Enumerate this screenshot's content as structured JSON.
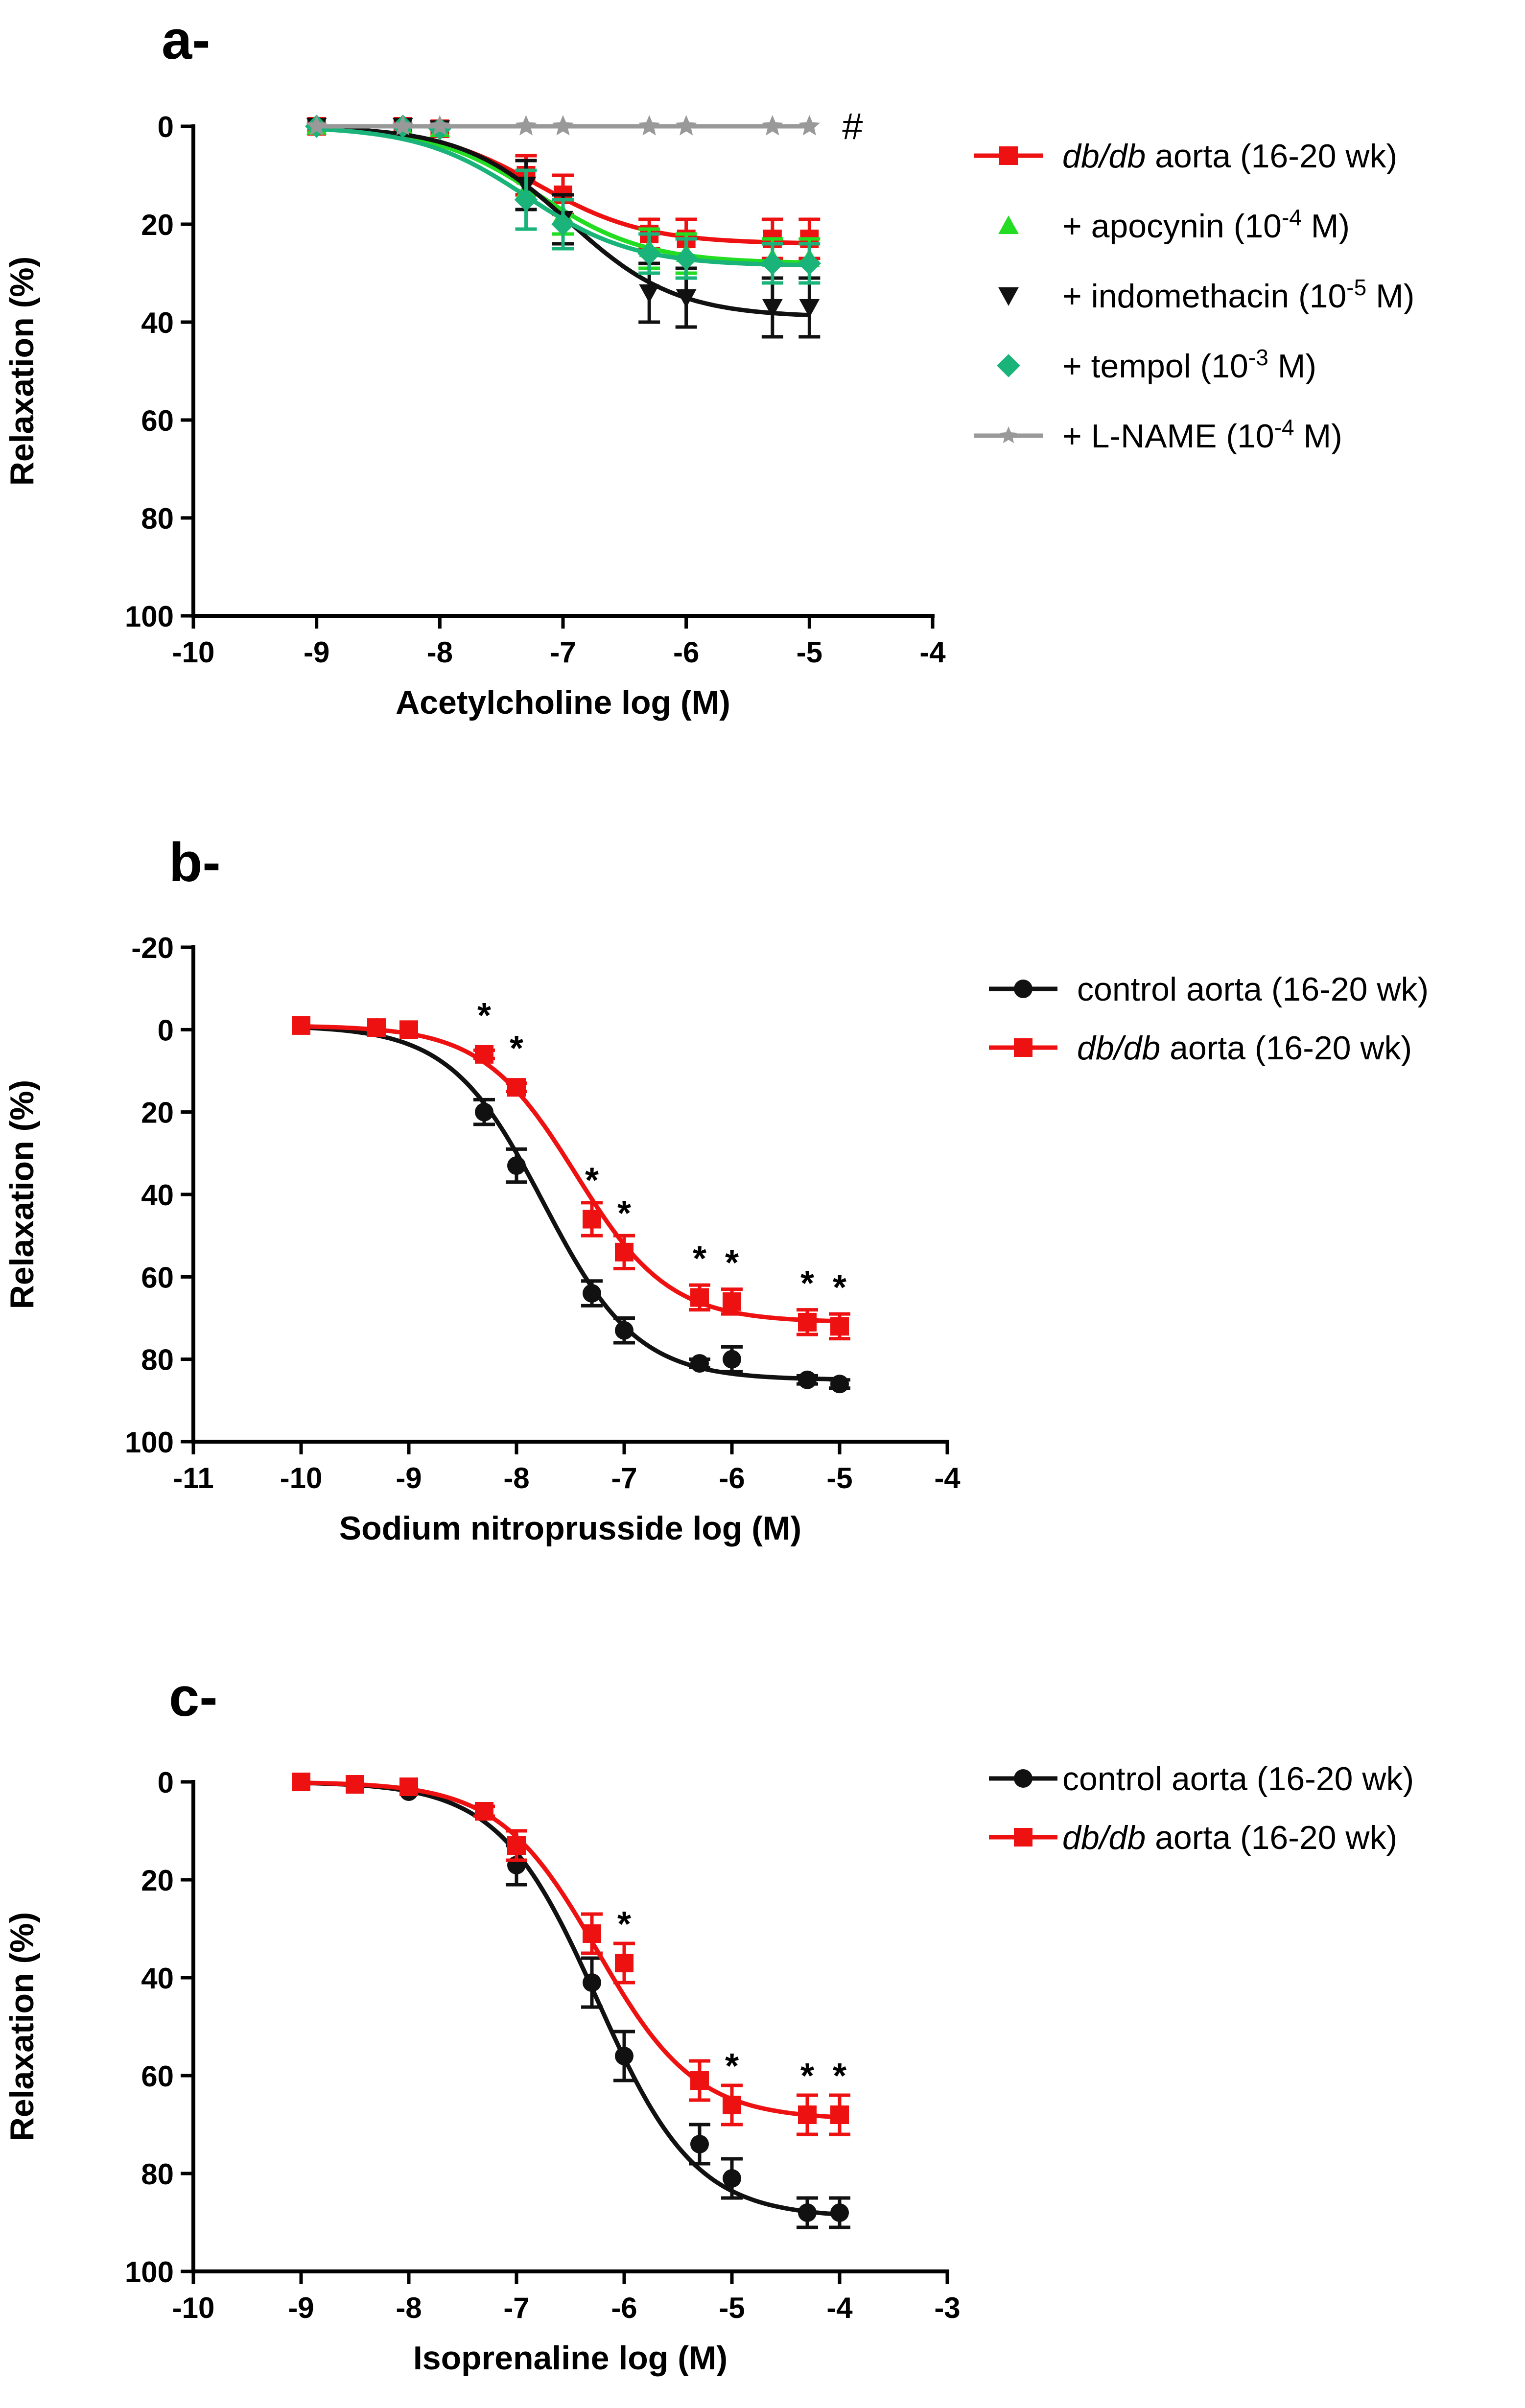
{
  "chart_data": [
    {
      "panel_label": "a-",
      "type": "line",
      "xlabel": "Acetylcholine log (M)",
      "ylabel": "Relaxation (%)",
      "xlim": [
        -10,
        -4
      ],
      "ylim": [
        0,
        100
      ],
      "y_inverted": true,
      "xticks": [
        "-10",
        "-9",
        "-8",
        "-7",
        "-6",
        "-5",
        "-4"
      ],
      "yticks": [
        "0",
        "20",
        "40",
        "60",
        "80",
        "100"
      ],
      "legend_position": "right",
      "annotations": [
        {
          "text": "#",
          "x": -4.65,
          "y": 0
        }
      ],
      "series": [
        {
          "name_prefix": "",
          "name_italic": "db/db",
          "name_rest": " aorta (16-20 wk)",
          "color": "#ee1111",
          "marker": "square",
          "x": [
            -9,
            -8.3,
            -8,
            -7.3,
            -7,
            -6.3,
            -6,
            -5.3,
            -5
          ],
          "y": [
            0,
            0,
            0.5,
            10,
            14,
            22,
            23,
            23,
            23
          ],
          "err": [
            0,
            0,
            0,
            4,
            4,
            3,
            4,
            4,
            4
          ],
          "fit": {
            "bottom": 0,
            "top": 24,
            "logec50": -7.2,
            "hill": 1.0
          }
        },
        {
          "name_prefix": "+ apocynin (10",
          "name_sup": "-4",
          "name_rest": " M)",
          "color": "#22dd22",
          "marker": "triangle-up",
          "x": [
            -9,
            -8.3,
            -8,
            -7.3,
            -7,
            -6.3,
            -6,
            -5.3,
            -5
          ],
          "y": [
            0,
            0,
            0.5,
            13,
            18,
            25,
            26,
            27,
            27
          ],
          "err": [
            0,
            0,
            0,
            4,
            4,
            4,
            4,
            4,
            4
          ],
          "fit": {
            "bottom": 0,
            "top": 28,
            "logec50": -7.2,
            "hill": 1.0
          }
        },
        {
          "name_prefix": "+ indomethacin (10",
          "name_sup": "-5",
          "name_rest": " M)",
          "color": "#111111",
          "marker": "triangle-down",
          "x": [
            -9,
            -8.3,
            -8,
            -7.3,
            -7,
            -6.3,
            -6,
            -5.3,
            -5
          ],
          "y": [
            0,
            0,
            0.5,
            12,
            19,
            34,
            35,
            37,
            37
          ],
          "err": [
            0,
            0,
            0,
            5,
            5,
            6,
            6,
            6,
            6
          ],
          "fit": {
            "bottom": 0,
            "top": 39,
            "logec50": -6.95,
            "hill": 1.0
          }
        },
        {
          "name_prefix": "+ tempol (10",
          "name_sup": "-3",
          "name_rest": " M)",
          "color": "#1ab47a",
          "marker": "diamond",
          "x": [
            -9,
            -8.3,
            -8,
            -7.3,
            -7,
            -6.3,
            -6,
            -5.3,
            -5
          ],
          "y": [
            0,
            0,
            0.5,
            15,
            20,
            26,
            27,
            28,
            28
          ],
          "err": [
            0,
            0,
            0,
            6,
            5,
            4,
            4,
            4,
            4
          ],
          "fit": {
            "bottom": 0,
            "top": 28.5,
            "logec50": -7.3,
            "hill": 1.0
          }
        },
        {
          "name_prefix": "+ L-NAME (10",
          "name_sup": "-4",
          "name_rest": " M)",
          "color": "#999999",
          "marker": "star",
          "x": [
            -9,
            -8.3,
            -8,
            -7.3,
            -7,
            -6.3,
            -6,
            -5.3,
            -5
          ],
          "y": [
            0,
            0,
            0,
            0,
            0,
            0,
            0,
            0,
            0
          ],
          "err": [
            0,
            0,
            0,
            0,
            0,
            0,
            0,
            0,
            0
          ],
          "fit": {
            "bottom": 0,
            "top": 0,
            "logec50": -7,
            "hill": 1.0
          }
        }
      ]
    },
    {
      "panel_label": "b-",
      "type": "line",
      "xlabel": "Sodium nitroprusside log (M)",
      "ylabel": "Relaxation (%)",
      "xlim": [
        -11,
        -4
      ],
      "ylim": [
        -20,
        100
      ],
      "y_inverted": true,
      "xticks": [
        "-11",
        "-10",
        "-9",
        "-8",
        "-7",
        "-6",
        "-5",
        "-4"
      ],
      "yticks": [
        "-20",
        "0",
        "20",
        "40",
        "60",
        "80",
        "100"
      ],
      "legend_position": "right",
      "annotations": [
        {
          "text": "*",
          "x": -8.3,
          "y": 6
        },
        {
          "text": "*",
          "x": -8.0,
          "y": 14
        },
        {
          "text": "*",
          "x": -7.3,
          "y": 46
        },
        {
          "text": "*",
          "x": -7.0,
          "y": 54
        },
        {
          "text": "*",
          "x": -6.3,
          "y": 65
        },
        {
          "text": "*",
          "x": -6.0,
          "y": 66
        },
        {
          "text": "*",
          "x": -5.3,
          "y": 71
        },
        {
          "text": "*",
          "x": -5.0,
          "y": 72
        }
      ],
      "series": [
        {
          "name_prefix": "control aorta (16-20  wk)",
          "name_rest": "",
          "color": "#111111",
          "marker": "circle",
          "x": [
            -10,
            -9.3,
            -9,
            -8.3,
            -8,
            -7.3,
            -7,
            -6.3,
            -6,
            -5.3,
            -5
          ],
          "y": [
            -1,
            -0.5,
            0,
            20,
            33,
            64,
            73,
            81,
            80,
            85,
            86
          ],
          "err": [
            0,
            0,
            0,
            3,
            4,
            3,
            3,
            1,
            3,
            1,
            1
          ],
          "fit": {
            "bottom": -1,
            "top": 85,
            "logec50": -7.75,
            "hill": 1.0
          }
        },
        {
          "name_prefix": "",
          "name_italic": "db/db",
          "name_rest": " aorta (16-20 wk)",
          "color": "#ee1111",
          "marker": "square",
          "x": [
            -10,
            -9.3,
            -9,
            -8.3,
            -8,
            -7.3,
            -7,
            -6.3,
            -6,
            -5.3,
            -5
          ],
          "y": [
            -1,
            -0.5,
            0,
            6,
            14,
            46,
            54,
            65,
            66,
            71,
            72
          ],
          "err": [
            0,
            0,
            0,
            1,
            1,
            4,
            4,
            3,
            3,
            3,
            3
          ],
          "fit": {
            "bottom": -1,
            "top": 71,
            "logec50": -7.45,
            "hill": 1.0
          }
        }
      ]
    },
    {
      "panel_label": "c-",
      "type": "line",
      "xlabel": "Isoprenaline log (M)",
      "ylabel": "Relaxation (%)",
      "xlim": [
        -10,
        -3
      ],
      "ylim": [
        0,
        100
      ],
      "y_inverted": true,
      "xticks": [
        "-10",
        "-9",
        "-8",
        "-7",
        "-6",
        "-5",
        "-4",
        "-3"
      ],
      "yticks": [
        "0",
        "20",
        "40",
        "60",
        "80",
        "100"
      ],
      "legend_position": "right",
      "annotations": [
        {
          "text": "*",
          "x": -6.0,
          "y": 37
        },
        {
          "text": "*",
          "x": -5.0,
          "y": 66
        },
        {
          "text": "*",
          "x": -4.3,
          "y": 68
        },
        {
          "text": "*",
          "x": -4.0,
          "y": 68
        }
      ],
      "series": [
        {
          "name_prefix": "control aorta (16-20 wk)",
          "name_rest": "",
          "color": "#111111",
          "marker": "circle",
          "x": [
            -9,
            -8.5,
            -8,
            -7.3,
            -7,
            -6.3,
            -6,
            -5.3,
            -5,
            -4.3,
            -4
          ],
          "y": [
            0,
            0.5,
            2,
            6,
            17,
            41,
            56,
            74,
            81,
            88,
            88
          ],
          "err": [
            0,
            0,
            0,
            1,
            4,
            5,
            5,
            4,
            4,
            3,
            3
          ],
          "fit": {
            "bottom": 0,
            "top": 89,
            "logec50": -6.25,
            "hill": 0.95
          }
        },
        {
          "name_prefix": "",
          "name_italic": "db/db",
          "name_rest": " aorta (16-20 wk)",
          "color": "#ee1111",
          "marker": "square",
          "x": [
            -9,
            -8.5,
            -8,
            -7.3,
            -7,
            -6.3,
            -6,
            -5.3,
            -5,
            -4.3,
            -4
          ],
          "y": [
            0,
            0.5,
            1,
            6,
            13,
            31,
            37,
            61,
            66,
            68,
            68
          ],
          "err": [
            0,
            0,
            0,
            1,
            3,
            4,
            4,
            4,
            4,
            4,
            4
          ],
          "fit": {
            "bottom": 0,
            "top": 69,
            "logec50": -6.25,
            "hill": 0.95
          }
        }
      ]
    }
  ]
}
